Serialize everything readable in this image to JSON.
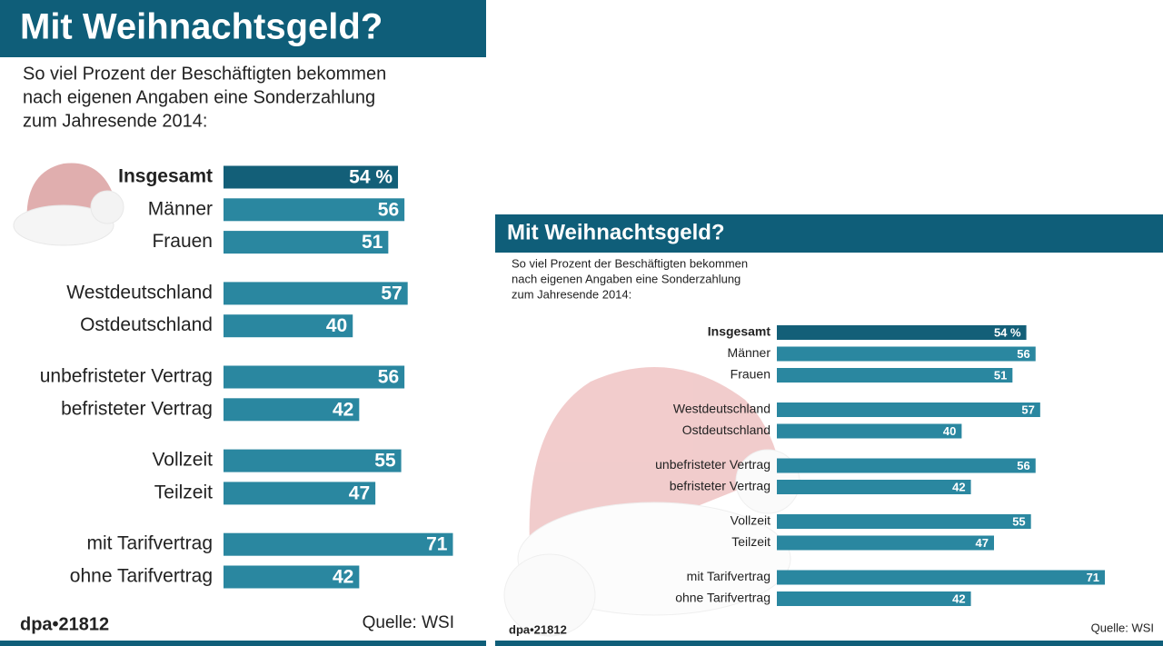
{
  "chart_data": [
    {
      "type": "bar",
      "orientation": "horizontal",
      "title": "Mit Weihnachtsgeld?",
      "subtitle": [
        "So viel Prozent der Beschäftigten bekommen",
        "nach eigenen Angaben eine Sonderzahlung",
        "zum Jahresende 2014:"
      ],
      "categories": [
        "Insgesamt",
        "Männer",
        "Frauen",
        "Westdeutschland",
        "Ostdeutschland",
        "unbefristeter Vertrag",
        "befristeter Vertrag",
        "Vollzeit",
        "Teilzeit",
        "mit Tarifvertrag",
        "ohne Tarifvertrag"
      ],
      "values": [
        54,
        56,
        51,
        57,
        40,
        56,
        42,
        55,
        47,
        71,
        42
      ],
      "value_labels": [
        "54 %",
        "56",
        "51",
        "57",
        "40",
        "56",
        "42",
        "55",
        "47",
        "71",
        "42"
      ],
      "colors": [
        "#135f78",
        "#2a87a0",
        "#2a87a0",
        "#2a87a0",
        "#2a87a0",
        "#2a87a0",
        "#2a87a0",
        "#2a87a0",
        "#2a87a0",
        "#2a87a0",
        "#2a87a0"
      ],
      "credit": "dpa•21812",
      "source": "Quelle: WSI"
    },
    {
      "type": "bar",
      "orientation": "horizontal",
      "title": "Mit Weihnachtsgeld?",
      "subtitle": [
        "So viel Prozent der Beschäftigten bekommen",
        "nach eigenen Angaben eine Sonderzahlung",
        "zum Jahresende 2014:"
      ],
      "categories": [
        "Insgesamt",
        "Männer",
        "Frauen",
        "Westdeutschland",
        "Ostdeutschland",
        "unbefristeter Vertrag",
        "befristeter Vertrag",
        "Vollzeit",
        "Teilzeit",
        "mit Tarifvertrag",
        "ohne Tarifvertrag"
      ],
      "values": [
        54,
        56,
        51,
        57,
        40,
        56,
        42,
        55,
        47,
        71,
        42
      ],
      "value_labels": [
        "54 %",
        "56",
        "51",
        "57",
        "40",
        "56",
        "42",
        "55",
        "47",
        "71",
        "42"
      ],
      "colors": [
        "#135f78",
        "#2a87a0",
        "#2a87a0",
        "#2a87a0",
        "#2a87a0",
        "#2a87a0",
        "#2a87a0",
        "#2a87a0",
        "#2a87a0",
        "#2a87a0",
        "#2a87a0"
      ],
      "credit": "dpa•21812",
      "source": "Quelle: WSI"
    }
  ]
}
